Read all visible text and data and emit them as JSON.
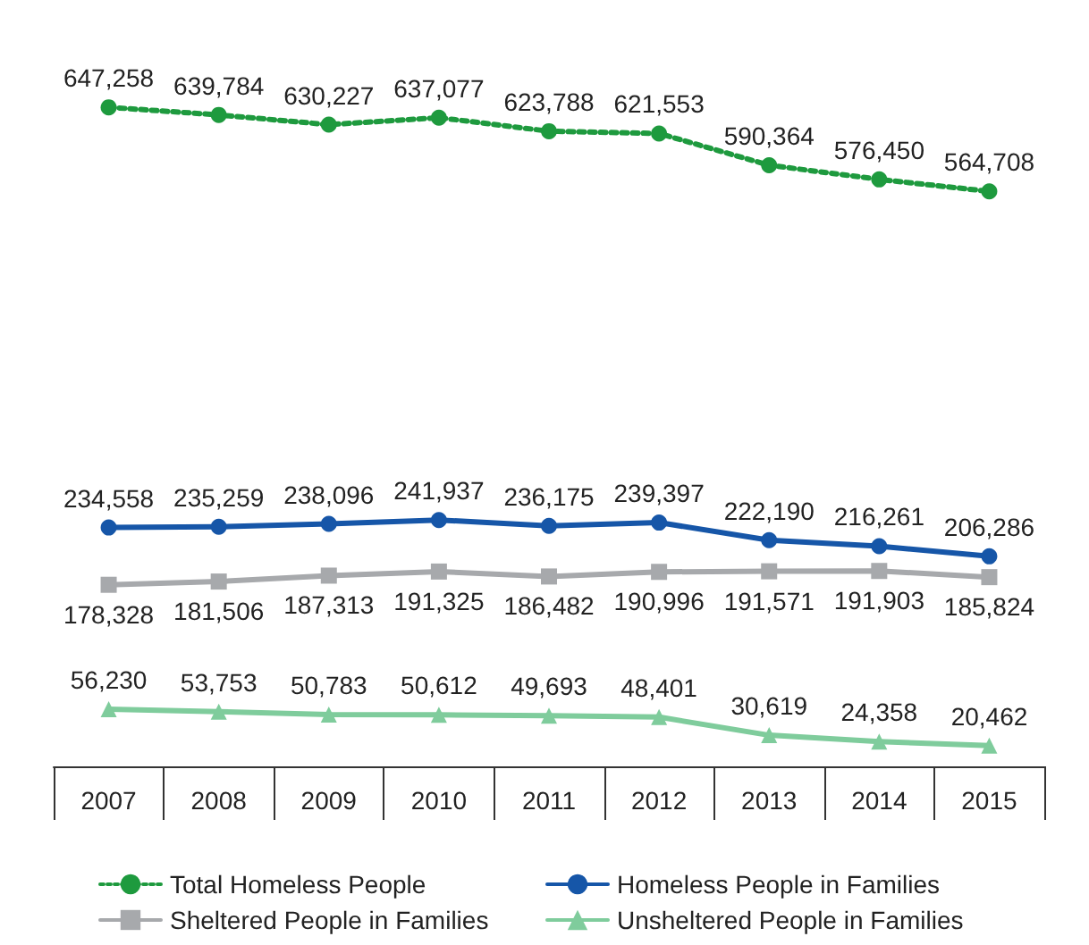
{
  "chart_data": {
    "type": "line",
    "categories": [
      "2007",
      "2008",
      "2009",
      "2010",
      "2011",
      "2012",
      "2013",
      "2014",
      "2015"
    ],
    "series": [
      {
        "name": "Total Homeless People",
        "color": "#1e9a3e",
        "marker": "circle",
        "line_style": "dotted",
        "values": [
          647258,
          639784,
          630227,
          637077,
          623788,
          621553,
          590364,
          576450,
          564708
        ],
        "value_labels": [
          "647,258",
          "639,784",
          "630,227",
          "637,077",
          "623,788",
          "621,553",
          "590,364",
          "576,450",
          "564,708"
        ]
      },
      {
        "name": "Homeless People in Families",
        "color": "#1656a8",
        "marker": "circle",
        "line_style": "solid",
        "values": [
          234558,
          235259,
          238096,
          241937,
          236175,
          239397,
          222190,
          216261,
          206286
        ],
        "value_labels": [
          "234,558",
          "235,259",
          "238,096",
          "241,937",
          "236,175",
          "239,397",
          "222,190",
          "216,261",
          "206,286"
        ]
      },
      {
        "name": "Sheltered People in Families",
        "color": "#a7a9ac",
        "marker": "square",
        "line_style": "solid",
        "values": [
          178328,
          181506,
          187313,
          191325,
          186482,
          190996,
          191571,
          191903,
          185824
        ],
        "value_labels": [
          "178,328",
          "181,506",
          "187,313",
          "191,325",
          "186,482",
          "190,996",
          "191,571",
          "191,903",
          "185,824"
        ]
      },
      {
        "name": "Unsheltered People in Families",
        "color": "#7fcc9c",
        "marker": "triangle",
        "line_style": "solid",
        "values": [
          56230,
          53753,
          50783,
          50612,
          49693,
          48401,
          30619,
          24358,
          20462
        ],
        "value_labels": [
          "56,230",
          "53,753",
          "50,783",
          "50,612",
          "49,693",
          "48,401",
          "30,619",
          "24,358",
          "20,462"
        ]
      }
    ],
    "legend": "bottom"
  }
}
